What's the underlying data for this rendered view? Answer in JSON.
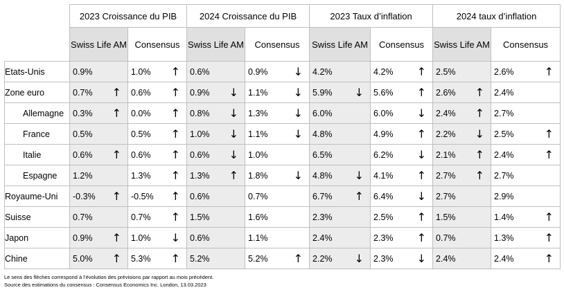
{
  "groups": [
    "2023 Croissance du PIB",
    "2024 Croissance du PIB",
    "2023 Taux d’inflation",
    "2024 taux d’inflation"
  ],
  "subheaders": [
    "Swiss Life AM",
    "Consensus"
  ],
  "rows": [
    {
      "country": "Etats-Unis",
      "indent": false,
      "cells": [
        [
          "0.9%",
          ""
        ],
        [
          "1.0%",
          "up"
        ],
        [
          "0.6%",
          ""
        ],
        [
          "0.9%",
          "down"
        ],
        [
          "4.2%",
          ""
        ],
        [
          "4.2%",
          "up"
        ],
        [
          "2.5%",
          ""
        ],
        [
          "2.6%",
          "up"
        ]
      ]
    },
    {
      "country": "Zone euro",
      "indent": false,
      "cells": [
        [
          "0.7%",
          "up"
        ],
        [
          "0.6%",
          "up"
        ],
        [
          "0.9%",
          "down"
        ],
        [
          "1.1%",
          "down"
        ],
        [
          "5.9%",
          "down"
        ],
        [
          "5.6%",
          "up"
        ],
        [
          "2.6%",
          "up"
        ],
        [
          "2.4%",
          ""
        ]
      ]
    },
    {
      "country": "Allemagne",
      "indent": true,
      "cells": [
        [
          "0.3%",
          "up"
        ],
        [
          "0.0%",
          "up"
        ],
        [
          "0.8%",
          "down"
        ],
        [
          "1.3%",
          "down"
        ],
        [
          "6.0%",
          ""
        ],
        [
          "6.0%",
          "down"
        ],
        [
          "2.4%",
          "up"
        ],
        [
          "2.7%",
          ""
        ]
      ]
    },
    {
      "country": "France",
      "indent": true,
      "cells": [
        [
          "0.5%",
          ""
        ],
        [
          "0.5%",
          "up"
        ],
        [
          "1.0%",
          "down"
        ],
        [
          "1.1%",
          "down"
        ],
        [
          "4.8%",
          ""
        ],
        [
          "4.9%",
          "up"
        ],
        [
          "2.2%",
          "down"
        ],
        [
          "2.5%",
          "up"
        ]
      ]
    },
    {
      "country": "Italie",
      "indent": true,
      "cells": [
        [
          "0.6%",
          "up"
        ],
        [
          "0.6%",
          "up"
        ],
        [
          "0.6%",
          "down"
        ],
        [
          "1.0%",
          ""
        ],
        [
          "6.5%",
          ""
        ],
        [
          "6.2%",
          "down"
        ],
        [
          "2.1%",
          "up"
        ],
        [
          "2.4%",
          "up"
        ]
      ]
    },
    {
      "country": "Espagne",
      "indent": true,
      "cells": [
        [
          "1.2%",
          ""
        ],
        [
          "1.3%",
          "up"
        ],
        [
          "1.3%",
          "up"
        ],
        [
          "1.8%",
          "down"
        ],
        [
          "4.8%",
          "down"
        ],
        [
          "4.1%",
          "up"
        ],
        [
          "2.7%",
          "up"
        ],
        [
          "2.7%",
          ""
        ]
      ]
    },
    {
      "country": "Royaume-Uni",
      "indent": false,
      "cells": [
        [
          "-0.3%",
          "up"
        ],
        [
          "-0.5%",
          "up"
        ],
        [
          "0.6%",
          ""
        ],
        [
          "0.7%",
          ""
        ],
        [
          "6.7%",
          "up"
        ],
        [
          "6.4%",
          "down"
        ],
        [
          "2.7%",
          ""
        ],
        [
          "2.9%",
          ""
        ]
      ]
    },
    {
      "country": "Suisse",
      "indent": false,
      "cells": [
        [
          "0.7%",
          ""
        ],
        [
          "0.7%",
          "up"
        ],
        [
          "1.5%",
          ""
        ],
        [
          "1.6%",
          ""
        ],
        [
          "2.3%",
          ""
        ],
        [
          "2.5%",
          "up"
        ],
        [
          "1.5%",
          ""
        ],
        [
          "1.4%",
          "up"
        ]
      ]
    },
    {
      "country": "Japon",
      "indent": false,
      "cells": [
        [
          "0.9%",
          "up"
        ],
        [
          "1.0%",
          "down"
        ],
        [
          "0.6%",
          ""
        ],
        [
          "1.1%",
          ""
        ],
        [
          "2.4%",
          ""
        ],
        [
          "2.3%",
          "up"
        ],
        [
          "0.7%",
          ""
        ],
        [
          "1.3%",
          "up"
        ]
      ]
    },
    {
      "country": "Chine",
      "indent": false,
      "cells": [
        [
          "5.0%",
          "up"
        ],
        [
          "5.3%",
          "up"
        ],
        [
          "5.2%",
          ""
        ],
        [
          "5.2%",
          "up"
        ],
        [
          "2.2%",
          "down"
        ],
        [
          "2.3%",
          "down"
        ],
        [
          "2.4%",
          ""
        ],
        [
          "2.4%",
          "up"
        ]
      ]
    }
  ],
  "notes": {
    "line1": "Le sens des flèches correspond à l’évolution des prévisions par rapport au mois précédent.",
    "line2": "Source des estimations du consensus : Consensus Economics Inc. London, 13.03.2023"
  }
}
